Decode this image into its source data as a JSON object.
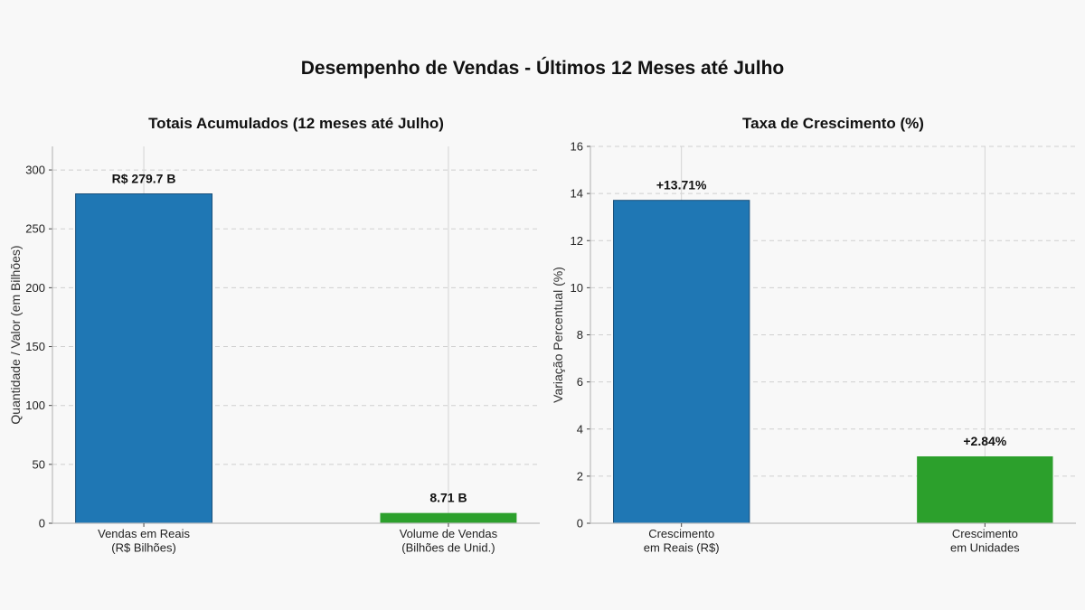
{
  "figure": {
    "title": "Desempenho de Vendas - Últimos 12 Meses até Julho",
    "background": "#f8f8f8"
  },
  "chart_data": [
    {
      "type": "bar",
      "title": "Totais Acumulados (12 meses até Julho)",
      "xlabel": "",
      "ylabel": "Quantidade / Valor (em Bilhões)",
      "ylim": [
        0,
        320
      ],
      "yticks": [
        0,
        50,
        100,
        150,
        200,
        250,
        300
      ],
      "categories": [
        [
          "Vendas em Reais",
          "(R$ Bilhões)"
        ],
        [
          "Volume de Vendas",
          "(Bilhões de Unid.)"
        ]
      ],
      "values": [
        279.7,
        8.71
      ],
      "data_labels": [
        "R$ 279.7 B",
        "8.71 B"
      ],
      "colors": [
        "#1f77b4",
        "#2ca02c"
      ],
      "grid": "y dashed, x solid at categories",
      "legend": "none"
    },
    {
      "type": "bar",
      "title": "Taxa de Crescimento (%)",
      "xlabel": "",
      "ylabel": "Variação Percentual (%)",
      "ylim": [
        0,
        16
      ],
      "yticks": [
        0,
        2,
        4,
        6,
        8,
        10,
        12,
        14,
        16
      ],
      "categories": [
        [
          "Crescimento",
          "em Reais (R$)"
        ],
        [
          "Crescimento",
          "em Unidades"
        ]
      ],
      "values": [
        13.71,
        2.84
      ],
      "data_labels": [
        "+13.71%",
        "+2.84%"
      ],
      "colors": [
        "#1f77b4",
        "#2ca02c"
      ],
      "grid": "y dashed, x solid at categories",
      "legend": "none"
    }
  ]
}
